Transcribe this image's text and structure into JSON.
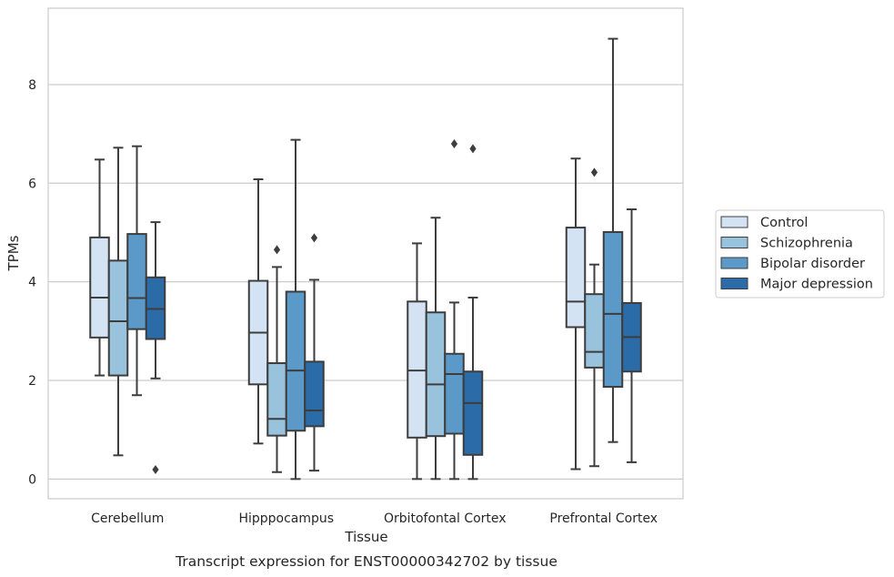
{
  "chart_data": {
    "type": "boxplot",
    "title": "",
    "caption": "Transcript expression for ENST00000342702 by tissue",
    "xlabel": "Tissue",
    "ylabel": "TPMs",
    "ylim": [
      -0.4,
      9.55
    ],
    "yticks": [
      0,
      2,
      4,
      6,
      8
    ],
    "grid": "horizontal",
    "legend_position": "right",
    "categories": [
      "Cerebellum",
      "Hipppocampus",
      "Orbitofontal Cortex",
      "Prefrontal Cortex"
    ],
    "series": [
      {
        "name": "Control",
        "color": "#d4e3f3",
        "boxes": [
          {
            "whislo": 2.1,
            "q1": 2.87,
            "med": 3.68,
            "q3": 4.9,
            "whishi": 6.48,
            "fliers": []
          },
          {
            "whislo": 0.72,
            "q1": 1.92,
            "med": 2.97,
            "q3": 4.02,
            "whishi": 6.08,
            "fliers": []
          },
          {
            "whislo": 0.0,
            "q1": 0.84,
            "med": 2.2,
            "q3": 3.6,
            "whishi": 4.78,
            "fliers": []
          },
          {
            "whislo": 0.2,
            "q1": 3.08,
            "med": 3.6,
            "q3": 5.1,
            "whishi": 6.5,
            "fliers": []
          }
        ]
      },
      {
        "name": "Schizophrenia",
        "color": "#99c2dc",
        "boxes": [
          {
            "whislo": 0.48,
            "q1": 2.1,
            "med": 3.2,
            "q3": 4.43,
            "whishi": 6.72,
            "fliers": []
          },
          {
            "whislo": 0.14,
            "q1": 0.88,
            "med": 1.22,
            "q3": 2.35,
            "whishi": 4.3,
            "fliers": [
              4.65
            ]
          },
          {
            "whislo": 0.0,
            "q1": 0.87,
            "med": 1.92,
            "q3": 3.38,
            "whishi": 5.3,
            "fliers": []
          },
          {
            "whislo": 0.26,
            "q1": 2.26,
            "med": 2.58,
            "q3": 3.75,
            "whishi": 4.35,
            "fliers": [
              6.22
            ]
          }
        ]
      },
      {
        "name": "Bipolar disorder",
        "color": "#5b9ac8",
        "boxes": [
          {
            "whislo": 1.7,
            "q1": 3.04,
            "med": 3.67,
            "q3": 4.97,
            "whishi": 6.75,
            "fliers": []
          },
          {
            "whislo": 0.0,
            "q1": 0.98,
            "med": 2.2,
            "q3": 3.8,
            "whishi": 6.88,
            "fliers": []
          },
          {
            "whislo": 0.0,
            "q1": 0.92,
            "med": 2.13,
            "q3": 2.54,
            "whishi": 3.58,
            "fliers": [
              6.8
            ]
          },
          {
            "whislo": 0.75,
            "q1": 1.87,
            "med": 3.35,
            "q3": 5.01,
            "whishi": 8.93,
            "fliers": []
          }
        ]
      },
      {
        "name": "Major depression",
        "color": "#2b6ba8",
        "boxes": [
          {
            "whislo": 2.04,
            "q1": 2.84,
            "med": 3.45,
            "q3": 4.09,
            "whishi": 5.21,
            "fliers": [
              0.19
            ]
          },
          {
            "whislo": 0.17,
            "q1": 1.07,
            "med": 1.39,
            "q3": 2.38,
            "whishi": 4.04,
            "fliers": [
              4.89
            ]
          },
          {
            "whislo": 0.0,
            "q1": 0.49,
            "med": 1.54,
            "q3": 2.18,
            "whishi": 3.68,
            "fliers": [
              6.7
            ]
          },
          {
            "whislo": 0.34,
            "q1": 2.18,
            "med": 2.88,
            "q3": 3.57,
            "whishi": 5.47,
            "fliers": []
          }
        ]
      }
    ]
  }
}
